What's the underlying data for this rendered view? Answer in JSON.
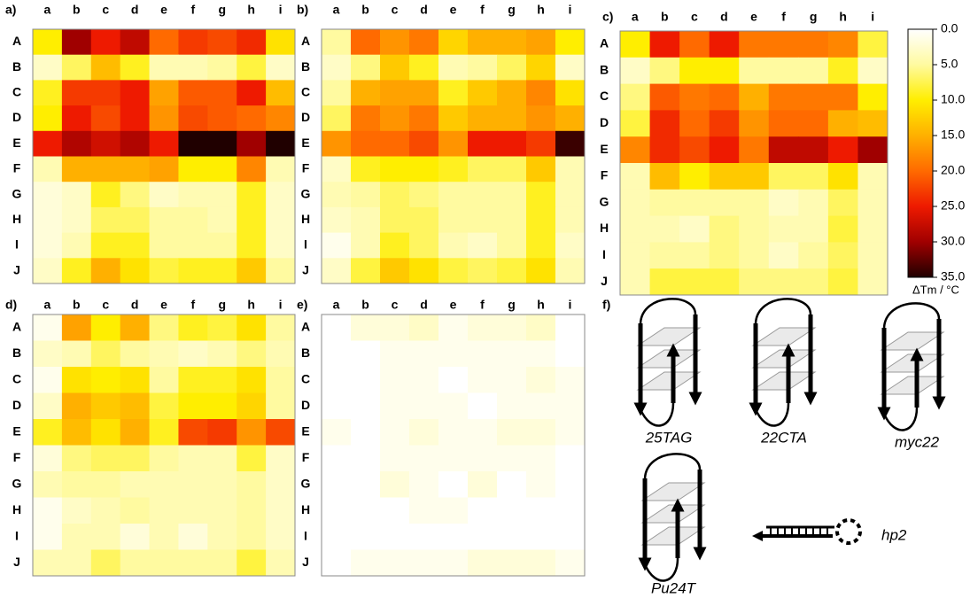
{
  "chart_data": [
    {
      "type": "heatmap",
      "panel_label": "a)",
      "x_categories": [
        "a",
        "b",
        "c",
        "d",
        "e",
        "f",
        "g",
        "h",
        "i"
      ],
      "y_categories": [
        "A",
        "B",
        "C",
        "D",
        "E",
        "F",
        "G",
        "H",
        "I",
        "J"
      ],
      "values": [
        [
          10,
          30,
          25,
          28,
          20,
          23,
          22,
          24,
          11
        ],
        [
          3,
          7,
          14,
          9,
          4,
          4,
          5,
          8,
          3
        ],
        [
          9,
          23,
          23,
          25,
          16,
          21,
          21,
          25,
          14
        ],
        [
          10,
          25,
          22,
          25,
          17,
          22,
          21,
          20,
          18
        ],
        [
          25,
          29,
          27,
          29,
          25,
          35,
          35,
          30,
          35
        ],
        [
          4,
          15,
          15,
          15,
          16,
          10,
          10,
          18,
          4
        ],
        [
          2,
          3,
          9,
          6,
          3,
          4,
          4,
          9,
          3
        ],
        [
          2,
          3,
          7,
          7,
          5,
          5,
          4,
          9,
          3
        ],
        [
          2,
          4,
          9,
          9,
          5,
          5,
          5,
          9,
          3
        ],
        [
          3,
          9,
          15,
          11,
          8,
          9,
          9,
          13,
          5
        ]
      ]
    },
    {
      "type": "heatmap",
      "panel_label": "b)",
      "x_categories": [
        "a",
        "b",
        "c",
        "d",
        "e",
        "f",
        "g",
        "h",
        "i"
      ],
      "y_categories": [
        "A",
        "B",
        "C",
        "D",
        "E",
        "F",
        "G",
        "H",
        "I",
        "J"
      ],
      "values": [
        [
          5,
          20,
          17,
          19,
          12,
          15,
          15,
          16,
          10
        ],
        [
          3,
          6,
          13,
          9,
          4,
          5,
          7,
          12,
          3
        ],
        [
          5,
          15,
          16,
          16,
          9,
          13,
          15,
          18,
          11
        ],
        [
          7,
          19,
          17,
          19,
          13,
          15,
          15,
          17,
          15
        ],
        [
          17,
          20,
          20,
          22,
          17,
          25,
          25,
          23,
          34
        ],
        [
          3,
          9,
          10,
          10,
          9,
          7,
          7,
          13,
          4
        ],
        [
          4,
          5,
          7,
          6,
          5,
          5,
          5,
          9,
          4
        ],
        [
          3,
          4,
          7,
          7,
          5,
          5,
          5,
          9,
          4
        ],
        [
          1,
          4,
          9,
          7,
          4,
          3,
          5,
          9,
          3
        ],
        [
          3,
          8,
          13,
          11,
          8,
          7,
          8,
          11,
          4
        ]
      ]
    },
    {
      "type": "heatmap",
      "panel_label": "c)",
      "x_categories": [
        "a",
        "b",
        "c",
        "d",
        "e",
        "f",
        "g",
        "h",
        "i"
      ],
      "y_categories": [
        "A",
        "B",
        "C",
        "D",
        "E",
        "F",
        "G",
        "H",
        "I",
        "J"
      ],
      "values": [
        [
          10,
          25,
          20,
          25,
          19,
          19,
          19,
          18,
          8
        ],
        [
          3,
          6,
          10,
          10,
          5,
          5,
          5,
          9,
          3
        ],
        [
          6,
          21,
          19,
          20,
          15,
          19,
          19,
          19,
          10
        ],
        [
          8,
          24,
          20,
          23,
          17,
          20,
          20,
          15,
          14
        ],
        [
          18,
          24,
          22,
          25,
          19,
          28,
          28,
          25,
          30
        ],
        [
          4,
          14,
          10,
          13,
          13,
          7,
          7,
          11,
          4
        ],
        [
          4,
          5,
          5,
          5,
          5,
          3,
          4,
          7,
          4
        ],
        [
          4,
          4,
          3,
          6,
          5,
          4,
          4,
          8,
          4
        ],
        [
          4,
          5,
          5,
          6,
          5,
          3,
          5,
          7,
          4
        ],
        [
          4,
          8,
          8,
          8,
          6,
          6,
          6,
          8,
          4
        ]
      ]
    },
    {
      "type": "heatmap",
      "panel_label": "d)",
      "x_categories": [
        "a",
        "b",
        "c",
        "d",
        "e",
        "f",
        "g",
        "h",
        "i"
      ],
      "y_categories": [
        "A",
        "B",
        "C",
        "D",
        "E",
        "F",
        "G",
        "H",
        "I",
        "J"
      ],
      "values": [
        [
          1,
          16,
          10,
          15,
          6,
          9,
          8,
          11,
          5
        ],
        [
          3,
          4,
          7,
          5,
          4,
          3,
          4,
          6,
          4
        ],
        [
          1,
          11,
          10,
          11,
          5,
          9,
          9,
          11,
          5
        ],
        [
          3,
          15,
          13,
          14,
          8,
          10,
          10,
          12,
          5
        ],
        [
          9,
          14,
          11,
          15,
          9,
          22,
          23,
          17,
          22
        ],
        [
          2,
          6,
          7,
          7,
          5,
          4,
          4,
          8,
          3
        ],
        [
          4,
          5,
          5,
          4,
          4,
          4,
          4,
          5,
          3
        ],
        [
          1,
          3,
          4,
          5,
          4,
          4,
          4,
          5,
          3
        ],
        [
          1,
          4,
          4,
          2,
          4,
          2,
          4,
          5,
          3
        ],
        [
          4,
          4,
          7,
          5,
          5,
          5,
          5,
          8,
          4
        ]
      ]
    },
    {
      "type": "heatmap",
      "panel_label": "e)",
      "x_categories": [
        "a",
        "b",
        "c",
        "d",
        "e",
        "f",
        "g",
        "h",
        "i"
      ],
      "y_categories": [
        "A",
        "B",
        "C",
        "D",
        "E",
        "F",
        "G",
        "H",
        "I",
        "J"
      ],
      "values": [
        [
          0,
          2,
          2,
          3,
          1,
          2,
          2,
          3,
          0
        ],
        [
          0,
          0,
          1,
          1,
          1,
          1,
          1,
          1,
          0
        ],
        [
          0,
          0,
          1,
          1,
          0,
          1,
          1,
          2,
          1
        ],
        [
          0,
          0,
          1,
          1,
          1,
          0,
          1,
          1,
          1
        ],
        [
          1,
          0,
          1,
          2,
          1,
          1,
          2,
          2,
          1
        ],
        [
          0,
          0,
          1,
          1,
          1,
          1,
          1,
          1,
          0
        ],
        [
          0,
          0,
          2,
          1,
          0,
          2,
          0,
          1,
          0
        ],
        [
          0,
          0,
          0,
          1,
          1,
          0,
          0,
          0,
          0
        ],
        [
          0,
          0,
          0,
          0,
          0,
          0,
          0,
          0,
          0
        ],
        [
          0,
          1,
          1,
          1,
          1,
          2,
          2,
          2,
          1
        ]
      ]
    }
  ],
  "colorbar": {
    "label": "ΔTm / °C",
    "lim": [
      0,
      35
    ],
    "colors": [
      "#ffffff",
      "#fffaa0",
      "#ffee00",
      "#ffb000",
      "#ff6a00",
      "#ee1a00",
      "#a00000",
      "#200000"
    ],
    "ticks": [
      {
        "value": 0,
        "label": "0.0"
      },
      {
        "value": 5,
        "label": "5.0"
      },
      {
        "value": 10,
        "label": "10.0"
      },
      {
        "value": 15,
        "label": "15.0"
      },
      {
        "value": 20,
        "label": "20.0"
      },
      {
        "value": 25,
        "label": "25.0"
      },
      {
        "value": 30,
        "label": "30.0"
      },
      {
        "value": 35,
        "label": "35.0"
      }
    ]
  },
  "diagram": {
    "panel_label": "f)",
    "structures": [
      "25TAG",
      "22CTA",
      "myc22",
      "Pu24T",
      "hp2"
    ]
  }
}
